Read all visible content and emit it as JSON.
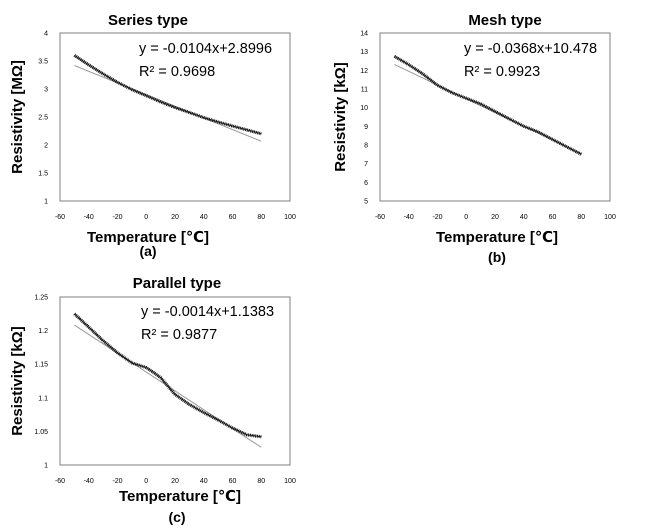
{
  "chart_data": [
    {
      "type": "line",
      "title": "Series type",
      "xlabel": "Temperature [℃]",
      "ylabel": "Resistivity [MΩ]",
      "caption": "(a)",
      "xlim": [
        -60,
        100
      ],
      "ylim": [
        1,
        4
      ],
      "xticks": [
        "-60",
        "-40",
        "-20",
        "0",
        "20",
        "40",
        "60",
        "80",
        "100"
      ],
      "yticks": [
        "1",
        "1.5",
        "2",
        "2.5",
        "3",
        "3.5",
        "4"
      ],
      "equation": "y = -0.0104x+2.8996",
      "r2": "R² = 0.9698",
      "colors": {
        "data": "#1a1a1a",
        "trend": "#9a9a9a"
      },
      "series": [
        {
          "x": [
            -50,
            -40,
            -30,
            -20,
            -10,
            0,
            10,
            20,
            30,
            40,
            50,
            60,
            70,
            80
          ],
          "values": [
            3.6,
            3.43,
            3.27,
            3.12,
            2.99,
            2.88,
            2.77,
            2.67,
            2.58,
            2.49,
            2.41,
            2.34,
            2.27,
            2.2
          ]
        },
        {
          "x": [
            -50,
            80
          ],
          "values": [
            3.4196,
            2.0676
          ]
        }
      ]
    },
    {
      "type": "line",
      "title": "Mesh type",
      "xlabel": "Temperature [℃]",
      "ylabel": "Resistivity [kΩ]",
      "caption": "(b)",
      "xlim": [
        -60,
        100
      ],
      "ylim": [
        5,
        14
      ],
      "xticks": [
        "-60",
        "-40",
        "-20",
        "0",
        "20",
        "40",
        "60",
        "80",
        "100"
      ],
      "yticks": [
        "5",
        "6",
        "7",
        "8",
        "9",
        "10",
        "11",
        "12",
        "13",
        "14"
      ],
      "equation": "y = -0.0368x+10.478",
      "r2": "R² = 0.9923",
      "colors": {
        "data": "#1a1a1a",
        "trend": "#9a9a9a"
      },
      "series": [
        {
          "x": [
            -50,
            -40,
            -30,
            -20,
            -10,
            0,
            10,
            20,
            30,
            40,
            50,
            60,
            70,
            80
          ],
          "values": [
            12.75,
            12.3,
            11.8,
            11.2,
            10.8,
            10.5,
            10.2,
            9.8,
            9.4,
            9.0,
            8.7,
            8.3,
            7.9,
            7.5
          ]
        },
        {
          "x": [
            -50,
            80
          ],
          "values": [
            12.318,
            7.534
          ]
        }
      ]
    },
    {
      "type": "line",
      "title": "Parallel type",
      "xlabel": "Temperature [℃]",
      "ylabel": "Resistivity [kΩ]",
      "caption": "(c)",
      "xlim": [
        -60,
        100
      ],
      "ylim": [
        1,
        1.25
      ],
      "xticks": [
        "-60",
        "-40",
        "-20",
        "0",
        "20",
        "40",
        "60",
        "80",
        "100"
      ],
      "yticks": [
        "1",
        "1.05",
        "1.1",
        "1.15",
        "1.2",
        "1.25"
      ],
      "equation": "y = -0.0014x+1.1383",
      "r2": "R² = 0.9877",
      "colors": {
        "data": "#1a1a1a",
        "trend": "#9a9a9a"
      },
      "series": [
        {
          "x": [
            -50,
            -40,
            -30,
            -20,
            -10,
            0,
            5,
            10,
            20,
            30,
            40,
            50,
            60,
            70,
            80
          ],
          "values": [
            1.225,
            1.205,
            1.185,
            1.167,
            1.152,
            1.145,
            1.138,
            1.13,
            1.105,
            1.09,
            1.078,
            1.067,
            1.055,
            1.045,
            1.042
          ]
        },
        {
          "x": [
            -50,
            80
          ],
          "values": [
            1.2083,
            1.0263
          ]
        }
      ]
    }
  ]
}
